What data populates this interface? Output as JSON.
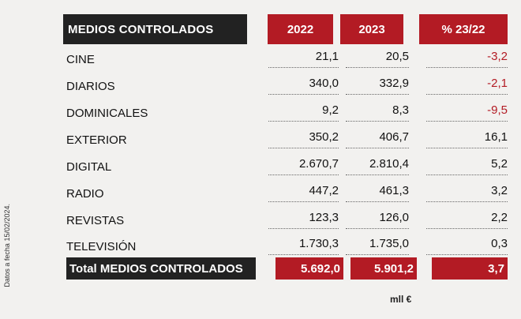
{
  "side_note": "Datos a fecha 15/02/2024.",
  "header": {
    "label": "MEDIOS CONTROLADOS",
    "year1": "2022",
    "year2": "2023",
    "change": "% 23/22"
  },
  "rows": [
    {
      "name": "CINE",
      "v2022": "21,1",
      "v2023": "20,5",
      "pct": "-3,2"
    },
    {
      "name": "DIARIOS",
      "v2022": "340,0",
      "v2023": "332,9",
      "pct": "-2,1"
    },
    {
      "name": "DOMINICALES",
      "v2022": "9,2",
      "v2023": "8,3",
      "pct": "-9,5"
    },
    {
      "name": "EXTERIOR",
      "v2022": "350,2",
      "v2023": "406,7",
      "pct": "16,1"
    },
    {
      "name": "DIGITAL",
      "v2022": "2.670,7",
      "v2023": "2.810,4",
      "pct": "5,2"
    },
    {
      "name": "RADIO",
      "v2022": "447,2",
      "v2023": "461,3",
      "pct": "3,2"
    },
    {
      "name": "REVISTAS",
      "v2022": "123,3",
      "v2023": "126,0",
      "pct": "2,2"
    },
    {
      "name": "TELEVISIÓN",
      "v2022": "1.730,3",
      "v2023": "1.735,0",
      "pct": "0,3"
    }
  ],
  "total": {
    "name": "Total MEDIOS CONTROLADOS",
    "v2022": "5.692,0",
    "v2023": "5.901,2",
    "pct": "3,7"
  },
  "unit": "mll €",
  "colors": {
    "accent": "#b31b24",
    "dark": "#222222",
    "negative": "#b31b24"
  }
}
